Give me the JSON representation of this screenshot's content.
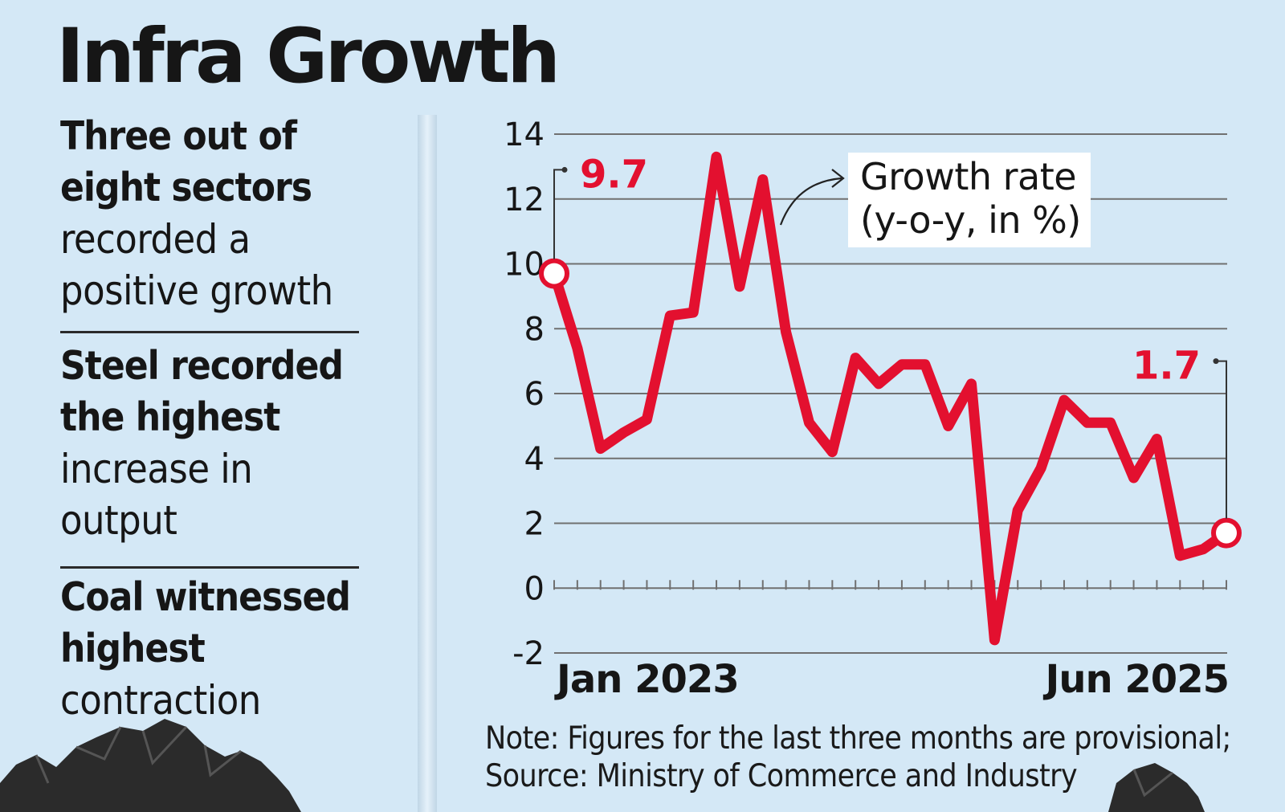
{
  "title": "Infra Growth",
  "points": [
    {
      "bold": [
        "Three out of",
        "eight sectors"
      ],
      "light": [
        "recorded a",
        "positive growth"
      ]
    },
    {
      "bold": [
        "Steel recorded",
        "the highest"
      ],
      "light": [
        "increase in",
        "output"
      ]
    },
    {
      "bold": [
        "Coal witnessed",
        "highest"
      ],
      "light": [
        "contraction"
      ]
    }
  ],
  "note": {
    "line1": "Note: Figures for the last three months are provisional;",
    "line2": "Source: Ministry of Commerce and Industry"
  },
  "colors": {
    "line": "#e3102f",
    "grid": "#707070",
    "text": "#161616",
    "background": "#d4e8f6"
  },
  "chart_data": {
    "type": "line",
    "title": "",
    "xlabel": "",
    "ylabel": "",
    "ylim": [
      -2,
      14
    ],
    "yticks": [
      14,
      12,
      10,
      8,
      6,
      4,
      2,
      0,
      -2
    ],
    "x_start_label": "Jan 2023",
    "x_end_label": "Jun 2025",
    "legend_box": [
      "Growth rate",
      "(y-o-y, in %)"
    ],
    "annotations": {
      "first_value_label": "9.7",
      "last_value_label": "1.7"
    },
    "series": [
      {
        "x": [
          "Jan 2023",
          "Feb 2023",
          "Mar 2023",
          "Apr 2023",
          "May 2023",
          "Jun 2023",
          "Jul 2023",
          "Aug 2023",
          "Sep 2023",
          "Oct 2023",
          "Nov 2023",
          "Dec 2023",
          "Jan 2024",
          "Feb 2024",
          "Mar 2024",
          "Apr 2024",
          "May 2024",
          "Jun 2024",
          "Jul 2024",
          "Aug 2024",
          "Sep 2024",
          "Oct 2024",
          "Nov 2024",
          "Dec 2024",
          "Jan 2025",
          "Feb 2025",
          "Mar 2025",
          "Apr 2025",
          "May 2025",
          "Jun 2025"
        ],
        "values": [
          9.7,
          7.4,
          4.3,
          4.8,
          5.2,
          8.4,
          8.5,
          13.3,
          9.3,
          12.6,
          7.9,
          5.1,
          4.2,
          7.1,
          6.3,
          6.9,
          6.9,
          5.0,
          6.3,
          -1.6,
          2.4,
          3.7,
          5.8,
          5.1,
          5.1,
          3.4,
          4.6,
          1.0,
          1.2,
          1.7
        ]
      }
    ]
  }
}
